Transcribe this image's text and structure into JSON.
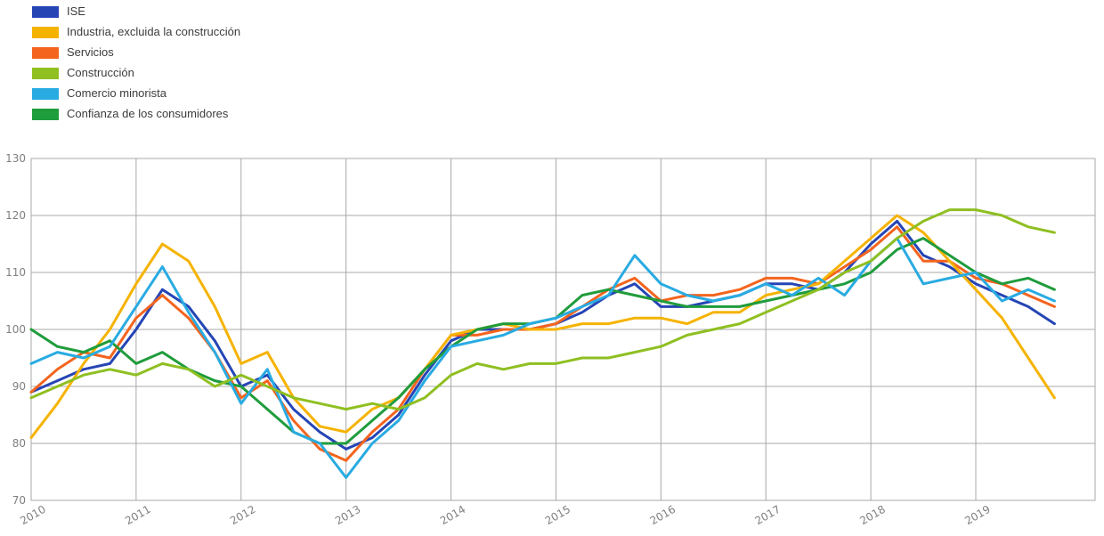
{
  "chart_data": {
    "type": "line",
    "grid": true,
    "legend_position": "top-left",
    "ylim": [
      70,
      130
    ],
    "yticks": [
      130,
      120,
      110,
      100,
      90,
      80,
      70
    ],
    "xticks": [
      2010,
      2011,
      2012,
      2013,
      2014,
      2015,
      2016,
      2017,
      2018,
      2019
    ],
    "x": [
      2010.0,
      2010.25,
      2010.5,
      2010.75,
      2011.0,
      2011.25,
      2011.5,
      2011.75,
      2012.0,
      2012.25,
      2012.5,
      2012.75,
      2013.0,
      2013.25,
      2013.5,
      2013.75,
      2014.0,
      2014.25,
      2014.5,
      2014.75,
      2015.0,
      2015.25,
      2015.5,
      2015.75,
      2016.0,
      2016.25,
      2016.5,
      2016.75,
      2017.0,
      2017.25,
      2017.5,
      2017.75,
      2018.0,
      2018.25,
      2018.5,
      2018.75,
      2019.0,
      2019.25,
      2019.5,
      2019.75
    ],
    "series": [
      {
        "name": "ISE",
        "color": "#2545b5",
        "values": [
          89,
          91,
          93,
          94,
          100,
          107,
          104,
          98,
          90,
          92,
          86,
          82,
          79,
          81,
          85,
          92,
          98,
          100,
          100,
          100,
          101,
          103,
          106,
          108,
          104,
          104,
          105,
          106,
          108,
          108,
          107,
          110,
          115,
          119,
          113,
          111,
          108,
          106,
          104,
          101
        ]
      },
      {
        "name": "Industria, excluida la construcción",
        "color": "#f5b301",
        "values": [
          81,
          87,
          94,
          100,
          108,
          115,
          112,
          104,
          94,
          96,
          88,
          83,
          82,
          86,
          88,
          93,
          99,
          100,
          101,
          100,
          100,
          101,
          101,
          102,
          102,
          101,
          103,
          103,
          106,
          107,
          108,
          112,
          116,
          120,
          117,
          112,
          107,
          102,
          95,
          88
        ]
      },
      {
        "name": "Servicios",
        "color": "#f4641e",
        "values": [
          89,
          93,
          96,
          95,
          102,
          106,
          102,
          96,
          88,
          91,
          84,
          79,
          77,
          82,
          86,
          93,
          99,
          99,
          100,
          100,
          101,
          104,
          107,
          109,
          105,
          106,
          106,
          107,
          109,
          109,
          108,
          111,
          114,
          118,
          112,
          112,
          109,
          108,
          106,
          104
        ]
      },
      {
        "name": "Construcción",
        "color": "#8fbf21",
        "values": [
          88,
          90,
          92,
          93,
          92,
          94,
          93,
          90,
          92,
          90,
          88,
          87,
          86,
          87,
          86,
          88,
          92,
          94,
          93,
          94,
          94,
          95,
          95,
          96,
          97,
          99,
          100,
          101,
          103,
          105,
          107,
          110,
          112,
          116,
          119,
          121,
          121,
          120,
          118,
          117
        ]
      },
      {
        "name": "Comercio minorista",
        "color": "#29abe2",
        "values": [
          94,
          96,
          95,
          97,
          104,
          111,
          103,
          96,
          87,
          93,
          82,
          80,
          74,
          80,
          84,
          91,
          97,
          98,
          99,
          101,
          102,
          104,
          106,
          113,
          108,
          106,
          105,
          106,
          108,
          106,
          109,
          106,
          112,
          116,
          108,
          109,
          110,
          105,
          107,
          105
        ]
      },
      {
        "name": "Confianza de los consumidores",
        "color": "#1f9c3c",
        "values": [
          100,
          97,
          96,
          98,
          94,
          96,
          93,
          91,
          90,
          86,
          82,
          80,
          80,
          84,
          88,
          93,
          97,
          100,
          101,
          101,
          102,
          106,
          107,
          106,
          105,
          104,
          104,
          104,
          105,
          106,
          107,
          108,
          110,
          114,
          116,
          113,
          110,
          108,
          109,
          107
        ]
      }
    ]
  }
}
